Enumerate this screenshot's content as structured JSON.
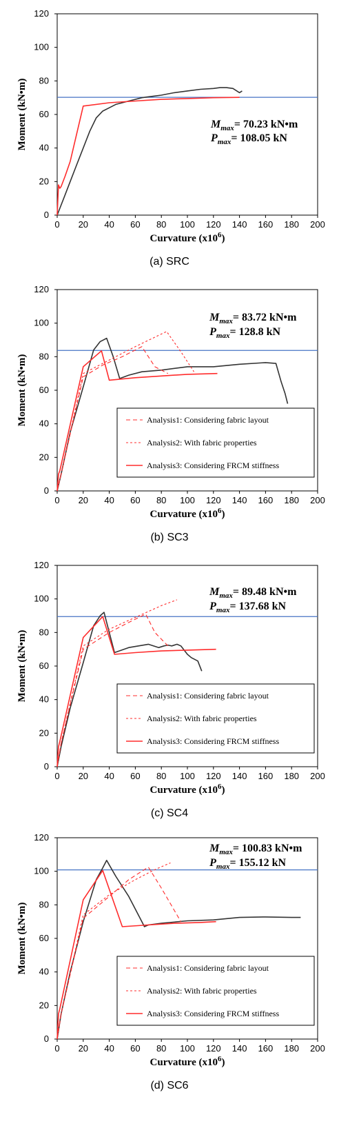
{
  "colors": {
    "experiment": "#333333",
    "analysis": "#ff2b2b",
    "reference": "#4472c4"
  },
  "chart_data": [
    {
      "type": "line",
      "caption": "(a)  SRC",
      "xlabel": "Curvature (x10",
      "xlabel_sup": "6",
      "xlabel_end": ")",
      "ylabel": "Moment (kN•m)",
      "xlim": [
        0,
        200
      ],
      "ylim": [
        0,
        120
      ],
      "xticks": [
        0,
        20,
        40,
        60,
        80,
        100,
        120,
        140,
        160,
        180,
        200
      ],
      "yticks": [
        0,
        20,
        40,
        60,
        80,
        100,
        120
      ],
      "annotation": {
        "m_label": "M",
        "m_sub": "max",
        "m_value": "= 70.23 kN•m",
        "p_label": "P",
        "p_sub": "max",
        "p_value": "= 108.05 kN"
      },
      "reference_line": 70.23,
      "legend": [],
      "series": [
        {
          "style": "experiment",
          "x": [
            0,
            5,
            10,
            15,
            20,
            25,
            30,
            35,
            40,
            45,
            50,
            55,
            60,
            65,
            70,
            80,
            90,
            100,
            110,
            120,
            125,
            130,
            135,
            140,
            142
          ],
          "y": [
            0,
            10,
            20,
            30,
            40,
            50,
            58,
            62,
            64,
            66,
            67,
            68,
            69,
            70,
            70.5,
            71.5,
            73,
            74,
            75,
            75.5,
            76,
            76,
            75.5,
            73,
            74
          ]
        },
        {
          "style": "analysis3",
          "x": [
            0,
            1,
            2,
            3,
            6,
            10,
            20,
            40,
            60,
            80,
            100,
            120,
            140
          ],
          "y": [
            0,
            18,
            16,
            17,
            23,
            32,
            65,
            67,
            68,
            69,
            69.5,
            70,
            70.2
          ]
        }
      ]
    },
    {
      "type": "line",
      "caption": "(b)  SC3",
      "xlabel": "Curvature (x10",
      "xlabel_sup": "6",
      "xlabel_end": ")",
      "ylabel": "Moment (kN•m)",
      "xlim": [
        0,
        200
      ],
      "ylim": [
        0,
        120
      ],
      "xticks": [
        0,
        20,
        40,
        60,
        80,
        100,
        120,
        140,
        160,
        180,
        200
      ],
      "yticks": [
        0,
        20,
        40,
        60,
        80,
        100,
        120
      ],
      "annotation": {
        "m_label": "M",
        "m_sub": "max",
        "m_value": "= 83.72 kN•m",
        "p_label": "P",
        "p_sub": "max",
        "p_value": "= 128.8 kN"
      },
      "reference_line": 83.72,
      "legend": [
        {
          "label": "Analysis1: Considering fabric layout",
          "style": "analysis1"
        },
        {
          "label": "Analysis2: With fabric properties",
          "style": "analysis2"
        },
        {
          "label": "Analysis3: Considering FRCM stiffness",
          "style": "analysis3"
        }
      ],
      "series": [
        {
          "style": "experiment",
          "x": [
            0,
            3,
            10,
            20,
            28,
            33,
            38,
            43,
            48,
            55,
            65,
            80,
            100,
            120,
            140,
            160,
            168,
            172,
            175,
            177
          ],
          "y": [
            0,
            10,
            35,
            62,
            84,
            89,
            91,
            80,
            67,
            69,
            71,
            72,
            74,
            74,
            75.5,
            76.5,
            76,
            65,
            58,
            52
          ]
        },
        {
          "style": "analysis1",
          "x": [
            0,
            3,
            20,
            35,
            50,
            65,
            75,
            85
          ],
          "y": [
            0,
            10,
            68,
            75,
            80,
            86,
            74,
            70
          ]
        },
        {
          "style": "analysis2",
          "x": [
            0,
            3,
            20,
            40,
            60,
            84,
            95,
            105
          ],
          "y": [
            0,
            10,
            70,
            78,
            86,
            95,
            83,
            71
          ]
        },
        {
          "style": "analysis3",
          "x": [
            0,
            1,
            2,
            20,
            34,
            40,
            60,
            80,
            100,
            123
          ],
          "y": [
            0,
            10,
            12,
            74,
            83.5,
            66,
            67.5,
            68.5,
            69.5,
            70
          ]
        }
      ]
    },
    {
      "type": "line",
      "caption": "(c)  SC4",
      "xlabel": "Curvature (x10",
      "xlabel_sup": "6",
      "xlabel_end": ")",
      "ylabel": "Moment (kN•m)",
      "xlim": [
        0,
        200
      ],
      "ylim": [
        0,
        120
      ],
      "xticks": [
        0,
        20,
        40,
        60,
        80,
        100,
        120,
        140,
        160,
        180,
        200
      ],
      "yticks": [
        0,
        20,
        40,
        60,
        80,
        100,
        120
      ],
      "annotation": {
        "m_label": "M",
        "m_sub": "max",
        "m_value": "= 89.48 kN•m",
        "p_label": "P",
        "p_sub": "max",
        "p_value": "= 137.68 kN"
      },
      "reference_line": 89.48,
      "legend": [
        {
          "label": "Analysis1: Considering fabric layout",
          "style": "analysis1"
        },
        {
          "label": "Analysis2: With fabric properties",
          "style": "analysis2"
        },
        {
          "label": "Analysis3: Considering FRCM stiffness",
          "style": "analysis3"
        }
      ],
      "series": [
        {
          "style": "experiment",
          "x": [
            0,
            3,
            10,
            20,
            28,
            33,
            36,
            40,
            44,
            55,
            70,
            78,
            82,
            85,
            88,
            92,
            95,
            100,
            103,
            108,
            111
          ],
          "y": [
            0,
            12,
            35,
            62,
            84,
            90,
            92,
            80,
            68,
            71,
            73,
            71,
            72,
            72.5,
            72,
            73,
            72,
            67,
            65,
            63,
            57
          ]
        },
        {
          "style": "analysis1",
          "x": [
            0,
            3,
            20,
            40,
            55,
            68,
            75,
            85
          ],
          "y": [
            0,
            14,
            70,
            80,
            86,
            91,
            80,
            72
          ]
        },
        {
          "style": "analysis2",
          "x": [
            0,
            3,
            20,
            40,
            60,
            80,
            92
          ],
          "y": [
            0,
            14,
            72,
            82,
            89,
            96,
            99.5
          ]
        },
        {
          "style": "analysis3",
          "x": [
            0,
            1,
            2,
            20,
            35,
            44,
            60,
            80,
            100,
            122
          ],
          "y": [
            0,
            12,
            15,
            77,
            89.5,
            67,
            68,
            69,
            69.5,
            70
          ]
        }
      ]
    },
    {
      "type": "line",
      "caption": "(d)  SC6",
      "xlabel": "Curvature (x10",
      "xlabel_sup": "6",
      "xlabel_end": ")",
      "ylabel": "Moment (kN•m)",
      "xlim": [
        0,
        200
      ],
      "ylim": [
        0,
        120
      ],
      "xticks": [
        0,
        20,
        40,
        60,
        80,
        100,
        120,
        140,
        160,
        180,
        200
      ],
      "yticks": [
        0,
        20,
        40,
        60,
        80,
        100,
        120
      ],
      "annotation": {
        "m_label": "M",
        "m_sub": "max",
        "m_value": "= 100.83 kN•m",
        "p_label": "P",
        "p_sub": "max",
        "p_value": "= 155.12 kN"
      },
      "reference_line": 100.83,
      "legend": [
        {
          "label": "Analysis1: Considering fabric layout",
          "style": "analysis1"
        },
        {
          "label": "Analysis2: With fabric properties",
          "style": "analysis2"
        },
        {
          "label": "Analysis3: Considering FRCM stiffness",
          "style": "analysis3"
        }
      ],
      "series": [
        {
          "style": "experiment",
          "x": [
            0,
            3,
            10,
            20,
            30,
            35,
            38,
            45,
            55,
            65,
            67,
            70,
            80,
            100,
            120,
            140,
            160,
            180,
            187
          ],
          "y": [
            0,
            15,
            40,
            70,
            95,
            102,
            106.5,
            97,
            85,
            70,
            67,
            68,
            69,
            70.5,
            71,
            72.5,
            72.8,
            72.5,
            72.5
          ]
        },
        {
          "style": "analysis1",
          "x": [
            0,
            3,
            20,
            40,
            55,
            70,
            80,
            95
          ],
          "y": [
            0,
            15,
            72,
            85,
            95,
            102.5,
            90,
            70
          ]
        },
        {
          "style": "analysis2",
          "x": [
            0,
            3,
            20,
            40,
            60,
            75,
            87
          ],
          "y": [
            0,
            15,
            74,
            86,
            95,
            101,
            105
          ]
        },
        {
          "style": "analysis3",
          "x": [
            0,
            1,
            2,
            20,
            35,
            50,
            70,
            90,
            110,
            122
          ],
          "y": [
            0,
            15,
            18,
            83,
            100.5,
            67,
            68,
            69,
            69.5,
            70
          ]
        }
      ]
    }
  ]
}
